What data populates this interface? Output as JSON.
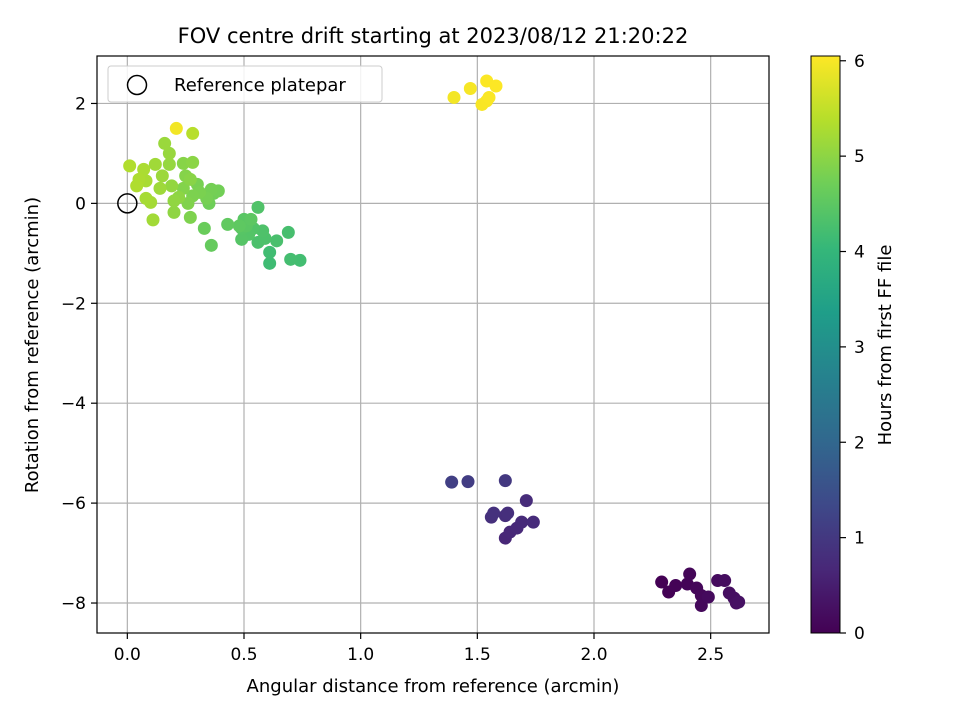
{
  "chart_data": {
    "type": "scatter",
    "title": "FOV centre drift starting at 2023/08/12 21:20:22",
    "xlabel": "Angular distance from reference (arcmin)",
    "ylabel": "Rotation from reference (arcmin)",
    "xlim": [
      -0.13,
      2.75
    ],
    "ylim": [
      -8.6,
      2.95
    ],
    "x_ticks": [
      0.0,
      0.5,
      1.0,
      1.5,
      2.0,
      2.5
    ],
    "x_tick_labels": [
      "0.0",
      "0.5",
      "1.0",
      "1.5",
      "2.0",
      "2.5"
    ],
    "y_ticks": [
      -8,
      -6,
      -4,
      -2,
      0,
      2
    ],
    "y_tick_labels": [
      "−8",
      "−6",
      "−4",
      "−2",
      "0",
      "2"
    ],
    "grid": true,
    "legend": {
      "placement": "top-left",
      "entries": [
        {
          "label": "Reference platepar",
          "marker": "open-circle"
        }
      ]
    },
    "reference_point": {
      "x": 0.0,
      "y": 0.0
    },
    "colorbar": {
      "label": "Hours from first FF file",
      "range": [
        0,
        6.05
      ],
      "ticks": [
        0,
        1,
        2,
        3,
        4,
        5,
        6
      ],
      "tick_labels": [
        "0",
        "1",
        "2",
        "3",
        "4",
        "5",
        "6"
      ],
      "colormap": "viridis",
      "colors": [
        "#440154",
        "#482878",
        "#3e4989",
        "#31688e",
        "#26828e",
        "#1f9e89",
        "#35b779",
        "#6ece58",
        "#b5de2b",
        "#fde725"
      ]
    },
    "points": [
      {
        "x": 2.29,
        "y": -7.58,
        "c": 0.0
      },
      {
        "x": 2.32,
        "y": -7.78,
        "c": 0.02
      },
      {
        "x": 2.35,
        "y": -7.65,
        "c": 0.04
      },
      {
        "x": 2.4,
        "y": -7.62,
        "c": 0.06
      },
      {
        "x": 2.41,
        "y": -7.42,
        "c": 0.08
      },
      {
        "x": 2.44,
        "y": -7.7,
        "c": 0.1
      },
      {
        "x": 2.46,
        "y": -7.85,
        "c": 0.12
      },
      {
        "x": 2.46,
        "y": -8.05,
        "c": 0.14
      },
      {
        "x": 2.49,
        "y": -7.88,
        "c": 0.16
      },
      {
        "x": 2.53,
        "y": -7.55,
        "c": 0.18
      },
      {
        "x": 2.56,
        "y": -7.55,
        "c": 0.2
      },
      {
        "x": 2.58,
        "y": -7.8,
        "c": 0.22
      },
      {
        "x": 2.6,
        "y": -7.9,
        "c": 0.24
      },
      {
        "x": 2.61,
        "y": -8.0,
        "c": 0.26
      },
      {
        "x": 2.62,
        "y": -7.98,
        "c": 0.28
      },
      {
        "x": 1.62,
        "y": -6.7,
        "c": 0.65
      },
      {
        "x": 1.64,
        "y": -6.58,
        "c": 0.68
      },
      {
        "x": 1.67,
        "y": -6.5,
        "c": 0.7
      },
      {
        "x": 1.69,
        "y": -6.38,
        "c": 0.72
      },
      {
        "x": 1.74,
        "y": -6.38,
        "c": 0.74
      },
      {
        "x": 1.71,
        "y": -5.95,
        "c": 0.76
      },
      {
        "x": 1.62,
        "y": -6.25,
        "c": 0.8
      },
      {
        "x": 1.63,
        "y": -6.2,
        "c": 0.82
      },
      {
        "x": 1.56,
        "y": -6.28,
        "c": 0.84
      },
      {
        "x": 1.57,
        "y": -6.2,
        "c": 0.86
      },
      {
        "x": 1.62,
        "y": -5.55,
        "c": 1.0
      },
      {
        "x": 1.46,
        "y": -5.57,
        "c": 1.1
      },
      {
        "x": 1.39,
        "y": -5.58,
        "c": 1.15
      },
      {
        "x": 0.61,
        "y": -1.2,
        "c": 4.15
      },
      {
        "x": 0.61,
        "y": -0.98,
        "c": 4.18
      },
      {
        "x": 0.74,
        "y": -1.14,
        "c": 4.2
      },
      {
        "x": 0.7,
        "y": -1.12,
        "c": 4.22
      },
      {
        "x": 0.69,
        "y": -0.58,
        "c": 4.25
      },
      {
        "x": 0.64,
        "y": -0.75,
        "c": 4.28
      },
      {
        "x": 0.56,
        "y": -0.78,
        "c": 4.3
      },
      {
        "x": 0.59,
        "y": -0.7,
        "c": 4.32
      },
      {
        "x": 0.58,
        "y": -0.55,
        "c": 4.34
      },
      {
        "x": 0.56,
        "y": -0.08,
        "c": 4.36
      },
      {
        "x": 0.54,
        "y": -0.5,
        "c": 4.38
      },
      {
        "x": 0.52,
        "y": -0.62,
        "c": 4.4
      },
      {
        "x": 0.49,
        "y": -0.72,
        "c": 4.42
      },
      {
        "x": 0.49,
        "y": -0.5,
        "c": 4.44
      },
      {
        "x": 0.5,
        "y": -0.32,
        "c": 4.46
      },
      {
        "x": 0.51,
        "y": -0.45,
        "c": 4.48
      },
      {
        "x": 0.53,
        "y": -0.32,
        "c": 4.5
      },
      {
        "x": 0.48,
        "y": -0.45,
        "c": 4.52
      },
      {
        "x": 0.43,
        "y": -0.42,
        "c": 4.55
      },
      {
        "x": 0.36,
        "y": -0.84,
        "c": 4.6
      },
      {
        "x": 0.33,
        "y": -0.5,
        "c": 4.65
      },
      {
        "x": 0.35,
        "y": 0.0,
        "c": 4.7
      },
      {
        "x": 0.37,
        "y": 0.2,
        "c": 4.72
      },
      {
        "x": 0.39,
        "y": 0.25,
        "c": 4.74
      },
      {
        "x": 0.36,
        "y": 0.28,
        "c": 4.76
      },
      {
        "x": 0.34,
        "y": 0.1,
        "c": 4.78
      },
      {
        "x": 0.3,
        "y": 0.38,
        "c": 4.8
      },
      {
        "x": 0.31,
        "y": 0.22,
        "c": 4.82
      },
      {
        "x": 0.28,
        "y": 0.15,
        "c": 4.84
      },
      {
        "x": 0.27,
        "y": -0.28,
        "c": 4.86
      },
      {
        "x": 0.26,
        "y": 0.0,
        "c": 4.88
      },
      {
        "x": 0.24,
        "y": 0.3,
        "c": 4.9
      },
      {
        "x": 0.25,
        "y": 0.55,
        "c": 4.92
      },
      {
        "x": 0.24,
        "y": 0.8,
        "c": 4.94
      },
      {
        "x": 0.27,
        "y": 0.48,
        "c": 4.96
      },
      {
        "x": 0.28,
        "y": 0.82,
        "c": 4.98
      },
      {
        "x": 0.22,
        "y": 0.12,
        "c": 5.0
      },
      {
        "x": 0.2,
        "y": -0.18,
        "c": 5.02
      },
      {
        "x": 0.2,
        "y": 0.05,
        "c": 5.04
      },
      {
        "x": 0.19,
        "y": 0.35,
        "c": 5.06
      },
      {
        "x": 0.18,
        "y": 0.78,
        "c": 5.08
      },
      {
        "x": 0.18,
        "y": 1.0,
        "c": 5.1
      },
      {
        "x": 0.16,
        "y": 1.2,
        "c": 5.12
      },
      {
        "x": 0.15,
        "y": 0.55,
        "c": 5.14
      },
      {
        "x": 0.14,
        "y": 0.3,
        "c": 5.16
      },
      {
        "x": 0.12,
        "y": 0.78,
        "c": 5.18
      },
      {
        "x": 0.11,
        "y": -0.33,
        "c": 5.2
      },
      {
        "x": 0.1,
        "y": 0.02,
        "c": 5.22
      },
      {
        "x": 0.08,
        "y": 0.1,
        "c": 5.24
      },
      {
        "x": 0.08,
        "y": 0.45,
        "c": 5.26
      },
      {
        "x": 0.07,
        "y": 0.68,
        "c": 5.28
      },
      {
        "x": 0.05,
        "y": 0.48,
        "c": 5.3
      },
      {
        "x": 0.04,
        "y": 0.35,
        "c": 5.32
      },
      {
        "x": 0.01,
        "y": 0.75,
        "c": 5.34
      },
      {
        "x": 0.28,
        "y": 1.4,
        "c": 5.4
      },
      {
        "x": 0.21,
        "y": 1.5,
        "c": 5.95
      },
      {
        "x": 1.4,
        "y": 2.12,
        "c": 5.96
      },
      {
        "x": 1.47,
        "y": 2.3,
        "c": 5.98
      },
      {
        "x": 1.52,
        "y": 1.98,
        "c": 6.0
      },
      {
        "x": 1.54,
        "y": 2.05,
        "c": 6.01
      },
      {
        "x": 1.55,
        "y": 2.12,
        "c": 6.02
      },
      {
        "x": 1.54,
        "y": 2.45,
        "c": 6.03
      },
      {
        "x": 1.58,
        "y": 2.35,
        "c": 6.04
      }
    ]
  }
}
